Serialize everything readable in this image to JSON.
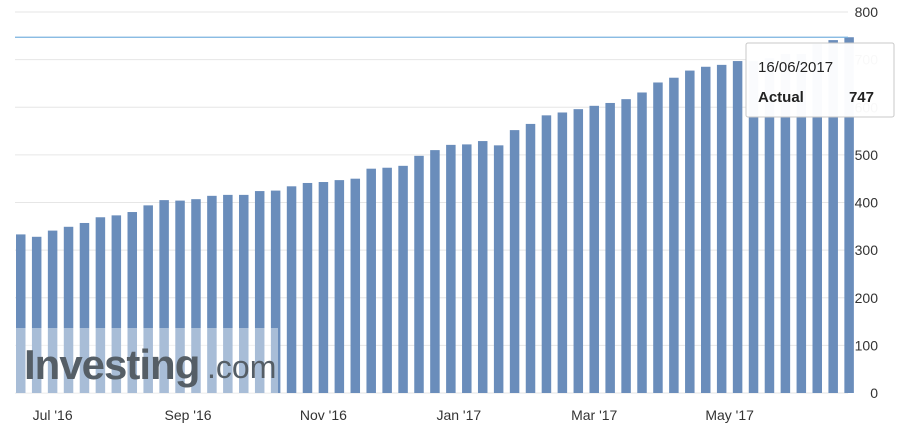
{
  "chart_data": {
    "type": "bar",
    "y_axis_position": "right",
    "ylim": [
      0,
      800
    ],
    "y_ticks": [
      "0",
      "100",
      "200",
      "300",
      "400",
      "500",
      "600",
      "700",
      "800"
    ],
    "x_tick_labels": [
      "Jul '16",
      "Sep '16",
      "Nov '16",
      "Jan '17",
      "Mar '17",
      "May '17"
    ],
    "grid": "horizontal",
    "bar_color": "#6a8dbb",
    "reference_line_color": "#7ab3df",
    "reference_line_value": 747,
    "values": [
      333,
      328,
      341,
      349,
      357,
      369,
      373,
      380,
      394,
      405,
      404,
      407,
      414,
      416,
      416,
      424,
      425,
      434,
      441,
      443,
      447,
      450,
      471,
      473,
      477,
      498,
      510,
      521,
      522,
      529,
      520,
      552,
      565,
      583,
      589,
      596,
      603,
      609,
      617,
      631,
      652,
      662,
      677,
      685,
      689,
      697,
      697,
      703,
      712,
      712,
      733,
      741,
      747
    ],
    "tooltip": {
      "date": "16/06/2017",
      "label": "Actual",
      "value": "747"
    }
  },
  "watermark": {
    "brand": "Investing",
    "suffix": ".com"
  }
}
